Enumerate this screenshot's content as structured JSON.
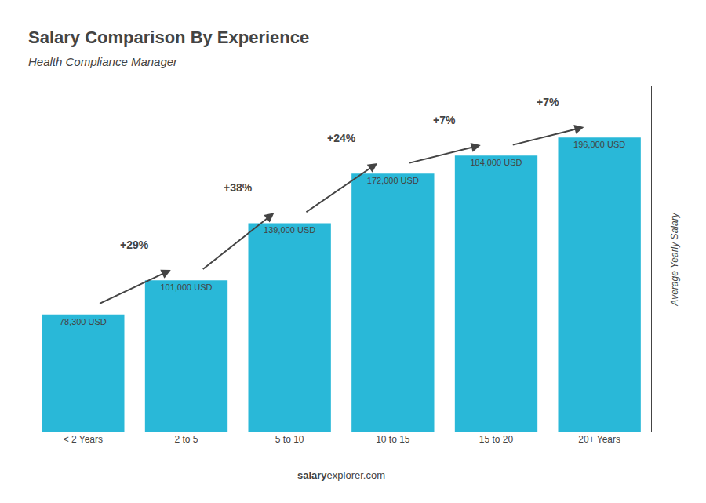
{
  "chart_data": {
    "type": "bar",
    "title": "Salary Comparison By Experience",
    "subtitle": "Health Compliance Manager",
    "categories": [
      "< 2 Years",
      "2 to 5",
      "5 to 10",
      "10 to 15",
      "15 to 20",
      "20+ Years"
    ],
    "values": [
      78300,
      101000,
      139000,
      172000,
      184000,
      196000
    ],
    "value_labels": [
      "78,300 USD",
      "101,000 USD",
      "139,000 USD",
      "172,000 USD",
      "184,000 USD",
      "196,000 USD"
    ],
    "data_labels": true,
    "color": "#29b8d8",
    "ylabel": "Average Yearly Salary",
    "ylim": [
      0,
      230000
    ],
    "tick_labels": "x",
    "grid": false,
    "annotations": [
      {
        "text": "+29%",
        "from": "< 2 Years",
        "to": "2 to 5"
      },
      {
        "text": "+38%",
        "from": "2 to 5",
        "to": "5 to 10"
      },
      {
        "text": "+24%",
        "from": "5 to 10",
        "to": "10 to 15"
      },
      {
        "text": "+7%",
        "from": "10 to 15",
        "to": "15 to 20"
      },
      {
        "text": "+7%",
        "from": "15 to 20",
        "to": "20+ Years"
      }
    ],
    "footer": [
      "salary",
      "explorer.com"
    ]
  }
}
